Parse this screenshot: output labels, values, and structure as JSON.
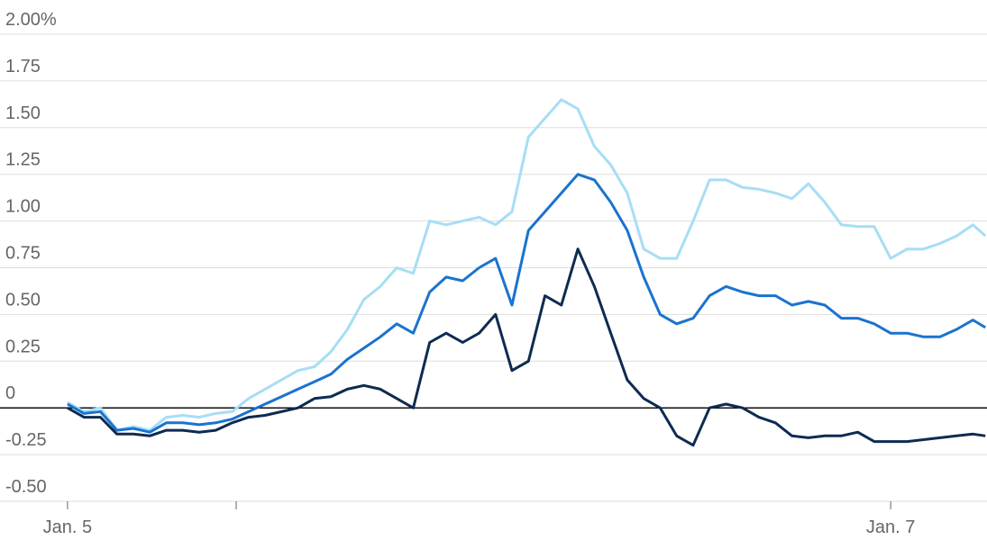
{
  "chart_data": {
    "type": "line",
    "x": [
      0,
      0.04,
      0.08,
      0.12,
      0.16,
      0.2,
      0.24,
      0.28,
      0.32,
      0.36,
      0.4,
      0.44,
      0.48,
      0.52,
      0.56,
      0.6,
      0.64,
      0.68,
      0.72,
      0.76,
      0.8,
      0.84,
      0.88,
      0.92,
      0.96,
      1.0,
      1.04,
      1.08,
      1.12,
      1.16,
      1.2,
      1.24,
      1.28,
      1.32,
      1.36,
      1.4,
      1.44,
      1.48,
      1.52,
      1.56,
      1.6,
      1.64,
      1.68,
      1.72,
      1.76,
      1.8,
      1.84,
      1.88,
      1.92,
      1.96,
      2.0,
      2.04,
      2.08,
      2.12,
      2.16,
      2.2,
      2.23
    ],
    "series": [
      {
        "color": "#a6def5",
        "values": [
          0.03,
          -0.02,
          0.0,
          -0.12,
          -0.1,
          -0.12,
          -0.05,
          -0.04,
          -0.05,
          -0.03,
          -0.02,
          0.05,
          0.1,
          0.15,
          0.2,
          0.22,
          0.3,
          0.42,
          0.58,
          0.65,
          0.75,
          0.72,
          1.0,
          0.98,
          1.0,
          1.02,
          0.98,
          1.05,
          1.45,
          1.55,
          1.65,
          1.6,
          1.4,
          1.3,
          1.15,
          0.85,
          0.8,
          0.8,
          1.0,
          1.22,
          1.22,
          1.18,
          1.17,
          1.15,
          1.12,
          1.2,
          1.1,
          0.98,
          0.97,
          0.97,
          0.8,
          0.85,
          0.85,
          0.88,
          0.92,
          0.98,
          0.92
        ]
      },
      {
        "color": "#1a73cf",
        "values": [
          0.02,
          -0.03,
          -0.02,
          -0.12,
          -0.11,
          -0.13,
          -0.08,
          -0.08,
          -0.09,
          -0.08,
          -0.06,
          -0.02,
          0.02,
          0.06,
          0.1,
          0.14,
          0.18,
          0.26,
          0.32,
          0.38,
          0.45,
          0.4,
          0.62,
          0.7,
          0.68,
          0.75,
          0.8,
          0.55,
          0.95,
          1.05,
          1.15,
          1.25,
          1.22,
          1.1,
          0.95,
          0.7,
          0.5,
          0.45,
          0.48,
          0.6,
          0.65,
          0.62,
          0.6,
          0.6,
          0.55,
          0.57,
          0.55,
          0.48,
          0.48,
          0.45,
          0.4,
          0.4,
          0.38,
          0.38,
          0.42,
          0.47,
          0.43
        ]
      },
      {
        "color": "#0d2b52",
        "values": [
          0.0,
          -0.05,
          -0.05,
          -0.14,
          -0.14,
          -0.15,
          -0.12,
          -0.12,
          -0.13,
          -0.12,
          -0.08,
          -0.05,
          -0.04,
          -0.02,
          0.0,
          0.05,
          0.06,
          0.1,
          0.12,
          0.1,
          0.05,
          0.0,
          0.35,
          0.4,
          0.35,
          0.4,
          0.5,
          0.2,
          0.25,
          0.6,
          0.55,
          0.85,
          0.65,
          0.4,
          0.15,
          0.05,
          0.0,
          -0.15,
          -0.2,
          0.0,
          0.02,
          0.0,
          -0.05,
          -0.08,
          -0.15,
          -0.16,
          -0.15,
          -0.15,
          -0.13,
          -0.18,
          -0.18,
          -0.18,
          -0.17,
          -0.16,
          -0.15,
          -0.14,
          -0.15
        ]
      }
    ],
    "xlim": [
      -0.164,
      2.234
    ],
    "xticks": [
      {
        "value": 0,
        "label": "Jan. 5"
      },
      {
        "value": 0.41,
        "label": null
      },
      {
        "value": 2,
        "label": "Jan. 7"
      }
    ],
    "ylim": [
      -0.5,
      2.0
    ],
    "yticks": [
      {
        "value": -0.5,
        "label": "-0.50"
      },
      -0.25,
      0,
      0.25,
      {
        "value": 0.5,
        "label": "0.50"
      },
      0.75,
      {
        "value": 1,
        "label": "1.00"
      },
      1.25,
      {
        "value": 1.5,
        "label": "1.50"
      },
      1.75,
      {
        "value": 2,
        "label": "2.00%"
      }
    ],
    "grid": true
  }
}
